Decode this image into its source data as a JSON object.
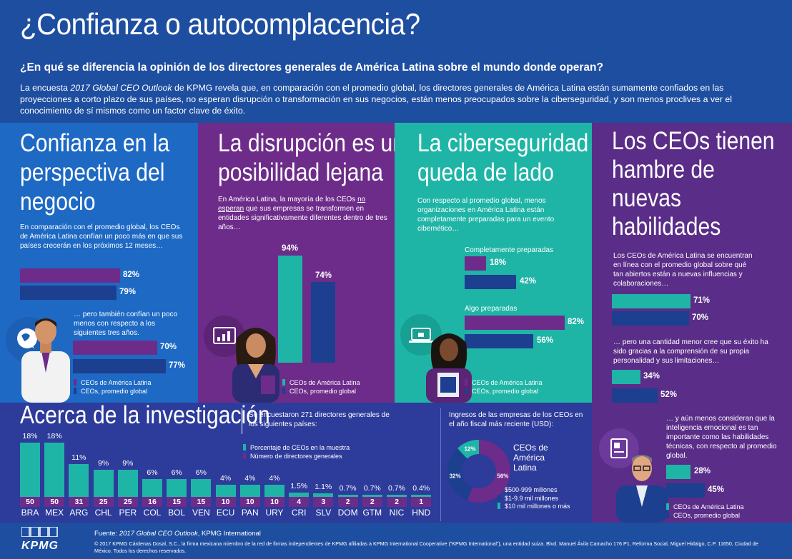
{
  "header": {
    "title": "¿Confianza o autocomplacencia?",
    "subtitle": "¿En qué se diferencia la opinión de los directores generales de América Latina sobre el mundo donde operan?",
    "intro_a": "La encuesta ",
    "intro_em": "2017 Global CEO Outlook",
    "intro_b": " de KPMG revela que, en comparación con el promedio global, los directores generales de América Latina están sumamente confiados en las proyecciones a corto plazo de sus países, no esperan disrupción o transformación en sus negocios, están menos preocupados sobre la ciberseguridad, y son menos proclives a ver el conocimiento de sí mismos como un factor clave de éxito."
  },
  "colors": {
    "latam": "#6d2c8a",
    "global": "#1d3f8f",
    "teal": "#1fb5a6"
  },
  "legend": {
    "latam": "CEOs de América Latina",
    "global": "CEOs, promedio global"
  },
  "panel1": {
    "title": [
      "Confianza en la",
      "perspectiva del",
      "negocio"
    ],
    "text1": "En comparación con el promedio global, los CEOs de América Latina confían un poco más en que sus países crecerán en los próximos 12 meses…",
    "bars1": [
      {
        "value": 82,
        "label": "82%"
      },
      {
        "value": 79,
        "label": "79%"
      }
    ],
    "text2": "… pero también confían un poco menos con respecto a los siguientes tres años.",
    "bars2": [
      {
        "value": 70,
        "label": "70%"
      },
      {
        "value": 77,
        "label": "77%"
      }
    ]
  },
  "panel2": {
    "title": [
      "La disrupción es una",
      "posibilidad lejana"
    ],
    "text_a": "En América Latina, la mayoría de los CEOs ",
    "text_u": "no esperan",
    "text_b": " que sus empresas se transformen en entidades significativamente diferentes dentro de tres años…",
    "bars": [
      {
        "value": 94,
        "label": "94%"
      },
      {
        "value": 74,
        "label": "74%"
      }
    ]
  },
  "panel3": {
    "title": [
      "La ciberseguridad",
      "queda de lado"
    ],
    "text": "Con respecto al promedio global, menos organizaciones en América Latina están completamente preparadas para un evento cibernético…",
    "group1": {
      "label": "Completamente preparadas",
      "bars": [
        {
          "value": 18,
          "label": "18%"
        },
        {
          "value": 42,
          "label": "42%"
        }
      ]
    },
    "group2": {
      "label": "Algo preparadas",
      "bars": [
        {
          "value": 82,
          "label": "82%"
        },
        {
          "value": 56,
          "label": "56%"
        }
      ]
    }
  },
  "panel4": {
    "title": [
      "Los CEOs tienen",
      "hambre de",
      "nuevas",
      "habilidades"
    ],
    "text1": "Los CEOs de América Latina se encuentran en línea con el promedio global sobre qué tan abiertos están a nuevas influencias y colaboraciones…",
    "bars1": [
      {
        "value": 71,
        "label": "71%"
      },
      {
        "value": 70,
        "label": "70%"
      }
    ],
    "text2": "… pero una cantidad menor cree que su éxito ha sido gracias a la comprensión de su propia personalidad y sus limitaciones…",
    "bars2": [
      {
        "value": 34,
        "label": "34%"
      },
      {
        "value": 52,
        "label": "52%"
      }
    ],
    "text3": "… y aún menos consideran que la inteligencia emocional es tan importante como las habilidades técnicas, con respecto al promedio global.",
    "bars3": [
      {
        "value": 28,
        "label": "28%"
      },
      {
        "value": 45,
        "label": "45%"
      }
    ]
  },
  "research": {
    "title": "Acerca de la investigación",
    "text": "Se encuestaron 271 directores generales de los siguientes países:",
    "legend_pct": "Porcentaje de CEOs en la muestra",
    "legend_num": "Número de directores generales",
    "countries": [
      {
        "code": "BRA",
        "pct": "18%",
        "pct_value": 18,
        "num": "50"
      },
      {
        "code": "MEX",
        "pct": "18%",
        "pct_value": 18,
        "num": "50"
      },
      {
        "code": "ARG",
        "pct": "11%",
        "pct_value": 11,
        "num": "31"
      },
      {
        "code": "CHL",
        "pct": "9%",
        "pct_value": 9,
        "num": "25"
      },
      {
        "code": "PER",
        "pct": "9%",
        "pct_value": 9,
        "num": "25"
      },
      {
        "code": "COL",
        "pct": "6%",
        "pct_value": 6,
        "num": "16"
      },
      {
        "code": "BOL",
        "pct": "6%",
        "pct_value": 6,
        "num": "15"
      },
      {
        "code": "VEN",
        "pct": "6%",
        "pct_value": 6,
        "num": "15"
      },
      {
        "code": "ECU",
        "pct": "4%",
        "pct_value": 4,
        "num": "10"
      },
      {
        "code": "PAN",
        "pct": "4%",
        "pct_value": 4,
        "num": "10"
      },
      {
        "code": "URY",
        "pct": "4%",
        "pct_value": 4,
        "num": "10"
      },
      {
        "code": "CRI",
        "pct": "1.5%",
        "pct_value": 1.5,
        "num": "4"
      },
      {
        "code": "SLV",
        "pct": "1.1%",
        "pct_value": 1.1,
        "num": "3"
      },
      {
        "code": "DOM",
        "pct": "0.7%",
        "pct_value": 0.7,
        "num": "2"
      },
      {
        "code": "GTM",
        "pct": "0.7%",
        "pct_value": 0.7,
        "num": "2"
      },
      {
        "code": "NIC",
        "pct": "0.7%",
        "pct_value": 0.7,
        "num": "2"
      },
      {
        "code": "HND",
        "pct": "0.4%",
        "pct_value": 0.4,
        "num": "1"
      }
    ]
  },
  "revenue": {
    "title": "Ingresos de las empresas de los CEOs en el año fiscal más reciente (USD):",
    "center": [
      "CEOs de",
      "América",
      "Latina"
    ],
    "slices": [
      {
        "label": "$500-999 millones",
        "value": 56,
        "pct": "56%",
        "color": "#6d2c8a"
      },
      {
        "label": "$1-9.9 mil millones",
        "value": 32,
        "pct": "32%",
        "color": "#1d3f8f"
      },
      {
        "label": "$10 mil millones o más",
        "value": 12,
        "pct": "12%",
        "color": "#1fb5a6"
      }
    ]
  },
  "footer": {
    "source_a": "Fuente: ",
    "source_em": "2017 Global CEO Outlook",
    "source_b": ", KPMG International",
    "legal": "© 2017 KPMG Cárdenas Dosal, S.C., la firma mexicana miembro de la red de firmas independientes de KPMG afiliadas a KPMG International Cooperative (“KPMG International”), una entidad suiza. Blvd. Manuel Ávila Camacho 176 P1, Reforma Social, Miguel Hidalgo, C.P. 11650, Ciudad de México. Todos los derechos reservados.",
    "logo": "KPMG"
  }
}
